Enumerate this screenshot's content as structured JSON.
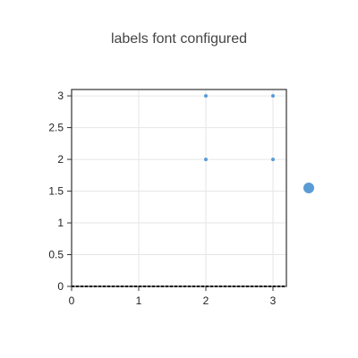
{
  "chart_data": {
    "type": "scatter",
    "title": "labels font configured",
    "xlabel": "",
    "ylabel": "",
    "xlim": [
      0,
      3.2
    ],
    "ylim": [
      0,
      3.1
    ],
    "x_ticks": [
      "0",
      "1",
      "2",
      "3"
    ],
    "y_ticks": [
      "0",
      "0.5",
      "1",
      "1.5",
      "2",
      "2.5",
      "3"
    ],
    "grid": true,
    "legend": "right",
    "series": [
      {
        "color": "#5b9bd5",
        "points": [
          [
            2,
            3
          ],
          [
            3,
            3
          ],
          [
            2,
            2
          ],
          [
            3,
            2
          ]
        ]
      }
    ]
  }
}
